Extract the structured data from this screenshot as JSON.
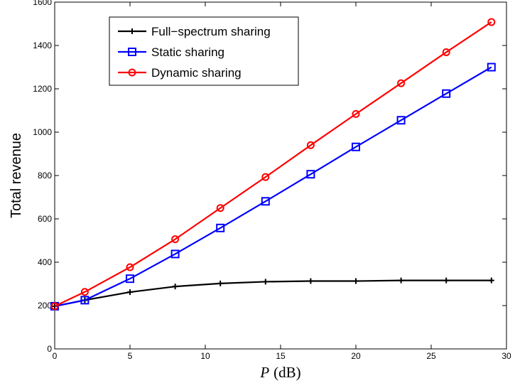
{
  "chart_data": {
    "type": "line",
    "title": "",
    "xlabel": "P (dB)",
    "xlabel_var": "P",
    "xlabel_unit": "(dB)",
    "ylabel": "Total revenue",
    "xlim": [
      0,
      30
    ],
    "ylim": [
      0,
      1600
    ],
    "xticks": [
      0,
      5,
      10,
      15,
      20,
      25,
      30
    ],
    "yticks": [
      0,
      200,
      400,
      600,
      800,
      1000,
      1200,
      1400,
      1600
    ],
    "grid": false,
    "legend_position": "top-left",
    "x": [
      0,
      2,
      5,
      8,
      11,
      14,
      17,
      20,
      23,
      26,
      29
    ],
    "series": [
      {
        "name": "Full−spectrum sharing",
        "color": "#000000",
        "marker": "plus",
        "values": [
          197,
          225,
          262,
          288,
          302,
          310,
          313,
          313,
          316,
          316,
          316
        ]
      },
      {
        "name": "Static sharing",
        "color": "#0000ff",
        "marker": "square",
        "values": [
          197,
          225,
          324,
          438,
          558,
          681,
          806,
          932,
          1055,
          1178,
          1300
        ]
      },
      {
        "name": "Dynamic sharing",
        "color": "#ff0000",
        "marker": "circle",
        "values": [
          197,
          263,
          377,
          506,
          650,
          793,
          940,
          1084,
          1226,
          1369,
          1508
        ]
      }
    ]
  }
}
